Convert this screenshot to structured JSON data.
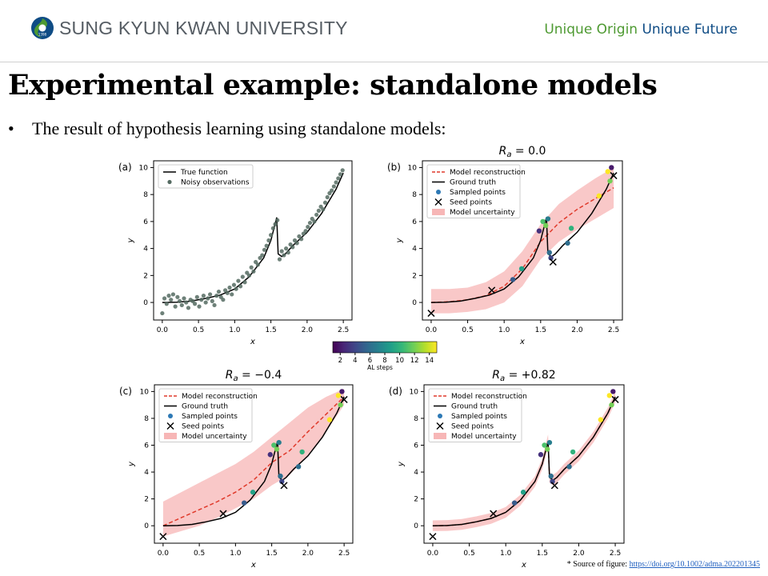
{
  "header": {
    "logo_text": "SUNG KYUN KWAN UNIVERSITY",
    "logo_year": "1398",
    "slogan_part1": "Unique Origin",
    "slogan_part2": "Unique Future",
    "colors": {
      "logo_green": "#4e9a32",
      "logo_blue": "#0f4c85",
      "slogan_green": "#4e9a32",
      "slogan_blue": "#0f4c85"
    }
  },
  "slide": {
    "title": "Experimental example: standalone models",
    "bullet": "The result of hypothesis learning using standalone models:",
    "bullet_glyph": "•"
  },
  "source": {
    "label": "* Source of figure:",
    "link": "https://doi.org/10.1002/adma.202201345"
  },
  "colorbar": {
    "label": "AL steps",
    "ticks": [
      2,
      4,
      6,
      8,
      10,
      12,
      14
    ],
    "range": [
      1,
      15
    ],
    "colormap": "viridis"
  },
  "chart_data": [
    {
      "panel": "(a)",
      "type": "scatter",
      "title": "",
      "xlabel": "x",
      "ylabel": "y",
      "xlim": [
        -0.12,
        2.62
      ],
      "ylim": [
        -1.3,
        10.5
      ],
      "xticks": [
        0.0,
        0.5,
        1.0,
        1.5,
        2.0,
        2.5
      ],
      "yticks": [
        0,
        2,
        4,
        6,
        8,
        10
      ],
      "legend": [
        "True function",
        "Noisy observations"
      ],
      "legend_position": "top-left",
      "series": [
        {
          "name": "True function",
          "kind": "line",
          "color": "#000000",
          "x": [
            0.0,
            0.2,
            0.4,
            0.6,
            0.8,
            1.0,
            1.2,
            1.4,
            1.5,
            1.58,
            1.6,
            1.65,
            1.7,
            1.8,
            2.0,
            2.2,
            2.4,
            2.5
          ],
          "y": [
            0.0,
            0.02,
            0.1,
            0.3,
            0.55,
            1.0,
            1.9,
            3.3,
            4.6,
            6.3,
            3.6,
            3.4,
            3.6,
            4.2,
            5.2,
            6.6,
            8.4,
            9.6
          ]
        },
        {
          "name": "Noisy observations",
          "kind": "points",
          "color": "#556b62",
          "x": [
            0.0,
            0.03,
            0.06,
            0.09,
            0.12,
            0.15,
            0.18,
            0.21,
            0.24,
            0.27,
            0.3,
            0.33,
            0.36,
            0.39,
            0.42,
            0.45,
            0.48,
            0.51,
            0.54,
            0.57,
            0.6,
            0.63,
            0.66,
            0.69,
            0.72,
            0.75,
            0.78,
            0.81,
            0.84,
            0.87,
            0.9,
            0.93,
            0.96,
            0.99,
            1.02,
            1.05,
            1.08,
            1.11,
            1.14,
            1.17,
            1.2,
            1.23,
            1.26,
            1.29,
            1.32,
            1.35,
            1.38,
            1.41,
            1.44,
            1.47,
            1.5,
            1.53,
            1.56,
            1.59,
            1.62,
            1.65,
            1.68,
            1.71,
            1.74,
            1.77,
            1.8,
            1.83,
            1.86,
            1.89,
            1.92,
            1.95,
            1.98,
            2.01,
            2.04,
            2.07,
            2.1,
            2.13,
            2.16,
            2.19,
            2.22,
            2.25,
            2.28,
            2.31,
            2.34,
            2.37,
            2.4,
            2.43,
            2.46,
            2.49
          ],
          "y": [
            -0.8,
            0.3,
            -0.1,
            0.5,
            0.2,
            0.6,
            -0.3,
            0.4,
            0.1,
            -0.2,
            0.3,
            0.0,
            -0.4,
            0.2,
            0.1,
            -0.1,
            0.4,
            -0.3,
            0.2,
            0.5,
            0.0,
            0.3,
            0.6,
            0.1,
            -0.2,
            0.5,
            0.8,
            0.4,
            0.2,
            0.9,
            0.7,
            1.1,
            0.6,
            1.3,
            1.0,
            1.6,
            1.2,
            1.9,
            1.5,
            2.2,
            2.0,
            2.6,
            2.3,
            3.0,
            2.8,
            3.3,
            3.5,
            3.9,
            4.2,
            4.6,
            5.0,
            5.5,
            5.8,
            6.1,
            3.2,
            3.8,
            3.5,
            4.0,
            3.7,
            4.3,
            4.1,
            4.6,
            4.4,
            4.9,
            4.7,
            5.1,
            5.3,
            5.6,
            5.9,
            6.2,
            6.0,
            6.5,
            6.8,
            7.1,
            6.9,
            7.4,
            7.8,
            8.1,
            8.3,
            8.6,
            8.9,
            9.2,
            9.5,
            9.8
          ]
        }
      ]
    },
    {
      "panel": "(b)",
      "type": "line",
      "title": "R_a = 0.0",
      "xlabel": "x",
      "ylabel": "y",
      "xlim": [
        -0.12,
        2.62
      ],
      "ylim": [
        -1.3,
        10.5
      ],
      "xticks": [
        0.0,
        0.5,
        1.0,
        1.5,
        2.0,
        2.5
      ],
      "yticks": [
        0,
        2,
        4,
        6,
        8,
        10
      ],
      "legend": [
        "Model reconstruction",
        "Ground truth",
        "Sampled points",
        "Seed points",
        "Model uncertainty"
      ],
      "legend_position": "top-left",
      "band": {
        "x": [
          0.0,
          0.25,
          0.5,
          0.75,
          1.0,
          1.25,
          1.5,
          1.75,
          2.0,
          2.25,
          2.5
        ],
        "lower": [
          -0.8,
          -0.8,
          -0.7,
          -0.5,
          0.0,
          1.2,
          3.2,
          4.5,
          5.4,
          6.2,
          7.0
        ],
        "upper": [
          1.0,
          1.0,
          1.1,
          1.5,
          2.3,
          3.8,
          5.8,
          7.3,
          8.3,
          9.2,
          10.0
        ]
      },
      "series": [
        {
          "name": "Model reconstruction",
          "kind": "dashed",
          "color": "#e03a2b",
          "x": [
            0.0,
            0.25,
            0.5,
            0.75,
            1.0,
            1.25,
            1.5,
            1.75,
            2.0,
            2.25,
            2.5
          ],
          "y": [
            0.0,
            0.05,
            0.2,
            0.5,
            1.2,
            2.5,
            4.5,
            5.9,
            6.9,
            7.7,
            8.5
          ]
        },
        {
          "name": "Ground truth",
          "kind": "line",
          "color": "#000000",
          "x": [
            0.0,
            0.2,
            0.4,
            0.6,
            0.8,
            1.0,
            1.2,
            1.4,
            1.5,
            1.58,
            1.6,
            1.65,
            1.7,
            1.8,
            2.0,
            2.2,
            2.4,
            2.5
          ],
          "y": [
            0.0,
            0.02,
            0.1,
            0.3,
            0.55,
            1.0,
            1.9,
            3.3,
            4.6,
            6.3,
            3.6,
            3.4,
            3.6,
            4.2,
            5.2,
            6.6,
            8.4,
            9.6
          ]
        }
      ],
      "sampled_points": [
        {
          "x": 1.12,
          "y": 1.7,
          "step": 5
        },
        {
          "x": 1.24,
          "y": 2.5,
          "step": 9
        },
        {
          "x": 1.48,
          "y": 5.3,
          "step": 3
        },
        {
          "x": 1.53,
          "y": 6.0,
          "step": 11
        },
        {
          "x": 1.57,
          "y": 5.7,
          "step": 12
        },
        {
          "x": 1.6,
          "y": 6.2,
          "step": 7
        },
        {
          "x": 1.62,
          "y": 3.7,
          "step": 6
        },
        {
          "x": 1.64,
          "y": 3.3,
          "step": 4
        },
        {
          "x": 1.87,
          "y": 4.4,
          "step": 6
        },
        {
          "x": 1.92,
          "y": 5.5,
          "step": 10
        },
        {
          "x": 2.3,
          "y": 7.9,
          "step": 15
        },
        {
          "x": 2.42,
          "y": 9.7,
          "step": 15
        },
        {
          "x": 2.45,
          "y": 9.0,
          "step": 12
        },
        {
          "x": 2.47,
          "y": 10.0,
          "step": 2
        }
      ],
      "seed_points": [
        {
          "x": 0.0,
          "y": -0.8
        },
        {
          "x": 0.83,
          "y": 0.9
        },
        {
          "x": 1.67,
          "y": 3.0
        },
        {
          "x": 2.5,
          "y": 9.4
        }
      ]
    },
    {
      "panel": "(c)",
      "type": "line",
      "title": "R_a = −0.4",
      "xlabel": "x",
      "ylabel": "y",
      "xlim": [
        -0.12,
        2.62
      ],
      "ylim": [
        -1.3,
        10.5
      ],
      "xticks": [
        0.0,
        0.5,
        1.0,
        1.5,
        2.0,
        2.5
      ],
      "yticks": [
        0,
        2,
        4,
        6,
        8,
        10
      ],
      "legend": [
        "Model reconstruction",
        "Ground truth",
        "Sampled points",
        "Seed points",
        "Model uncertainty"
      ],
      "legend_position": "top-left",
      "band": {
        "x": [
          0.0,
          0.25,
          0.5,
          0.75,
          1.0,
          1.25,
          1.5,
          1.75,
          2.0,
          2.25,
          2.5
        ],
        "lower": [
          -0.8,
          -0.4,
          0.0,
          0.6,
          1.3,
          2.0,
          3.0,
          3.8,
          5.2,
          7.0,
          9.0
        ],
        "upper": [
          1.8,
          2.5,
          3.2,
          3.9,
          4.6,
          5.5,
          6.6,
          7.7,
          8.8,
          9.6,
          10.2
        ]
      },
      "series": [
        {
          "name": "Model reconstruction",
          "kind": "dashed",
          "color": "#e03a2b",
          "x": [
            0.0,
            0.25,
            0.5,
            0.75,
            1.0,
            1.25,
            1.5,
            1.75,
            2.0,
            2.25,
            2.5
          ],
          "y": [
            0.0,
            0.6,
            1.2,
            1.8,
            2.5,
            3.4,
            4.7,
            5.6,
            7.0,
            8.3,
            9.6
          ]
        },
        {
          "name": "Ground truth",
          "kind": "line",
          "color": "#000000",
          "x": [
            0.0,
            0.2,
            0.4,
            0.6,
            0.8,
            1.0,
            1.2,
            1.4,
            1.5,
            1.58,
            1.6,
            1.65,
            1.7,
            1.8,
            2.0,
            2.2,
            2.4,
            2.5
          ],
          "y": [
            0.0,
            0.02,
            0.1,
            0.3,
            0.55,
            1.0,
            1.9,
            3.3,
            4.6,
            6.3,
            3.6,
            3.4,
            3.6,
            4.2,
            5.2,
            6.6,
            8.4,
            9.6
          ]
        }
      ],
      "sampled_points": [
        {
          "x": 1.12,
          "y": 1.7,
          "step": 5
        },
        {
          "x": 1.24,
          "y": 2.5,
          "step": 9
        },
        {
          "x": 1.48,
          "y": 5.3,
          "step": 3
        },
        {
          "x": 1.53,
          "y": 6.0,
          "step": 11
        },
        {
          "x": 1.57,
          "y": 5.7,
          "step": 12
        },
        {
          "x": 1.6,
          "y": 6.2,
          "step": 7
        },
        {
          "x": 1.62,
          "y": 3.7,
          "step": 6
        },
        {
          "x": 1.64,
          "y": 3.3,
          "step": 4
        },
        {
          "x": 1.87,
          "y": 4.4,
          "step": 6
        },
        {
          "x": 1.92,
          "y": 5.5,
          "step": 10
        },
        {
          "x": 2.3,
          "y": 7.9,
          "step": 15
        },
        {
          "x": 2.42,
          "y": 9.7,
          "step": 15
        },
        {
          "x": 2.45,
          "y": 9.0,
          "step": 12
        },
        {
          "x": 2.47,
          "y": 10.0,
          "step": 2
        }
      ],
      "seed_points": [
        {
          "x": 0.0,
          "y": -0.8
        },
        {
          "x": 0.83,
          "y": 0.9
        },
        {
          "x": 1.67,
          "y": 3.0
        },
        {
          "x": 2.5,
          "y": 9.4
        }
      ]
    },
    {
      "panel": "(d)",
      "type": "line",
      "title": "R_a = +0.82",
      "xlabel": "x",
      "ylabel": "y",
      "xlim": [
        -0.12,
        2.62
      ],
      "ylim": [
        -1.3,
        10.5
      ],
      "xticks": [
        0.0,
        0.5,
        1.0,
        1.5,
        2.0,
        2.5
      ],
      "yticks": [
        0,
        2,
        4,
        6,
        8,
        10
      ],
      "legend": [
        "Model reconstruction",
        "Ground truth",
        "Sampled points",
        "Seed points",
        "Model uncertainty"
      ],
      "legend_position": "top-left",
      "band": {
        "x": [
          0.0,
          0.2,
          0.4,
          0.6,
          0.8,
          1.0,
          1.2,
          1.4,
          1.5,
          1.58,
          1.6,
          1.65,
          1.7,
          1.8,
          2.0,
          2.2,
          2.4,
          2.5
        ],
        "lower": [
          -0.4,
          -0.38,
          -0.3,
          -0.1,
          0.15,
          0.6,
          1.5,
          2.9,
          4.2,
          5.8,
          3.2,
          3.0,
          3.2,
          3.8,
          4.8,
          6.2,
          8.0,
          9.2
        ],
        "upper": [
          0.4,
          0.42,
          0.5,
          0.7,
          0.95,
          1.4,
          2.3,
          3.7,
          5.0,
          6.8,
          4.0,
          3.8,
          4.0,
          4.6,
          5.6,
          7.0,
          8.8,
          10.0
        ]
      },
      "series": [
        {
          "name": "Model reconstruction",
          "kind": "dashed",
          "color": "#e03a2b",
          "x": [
            0.0,
            0.2,
            0.4,
            0.6,
            0.8,
            1.0,
            1.2,
            1.4,
            1.5,
            1.58,
            1.6,
            1.65,
            1.7,
            1.8,
            2.0,
            2.2,
            2.4,
            2.5
          ],
          "y": [
            0.0,
            0.02,
            0.1,
            0.3,
            0.55,
            1.0,
            1.9,
            3.3,
            4.6,
            6.3,
            3.6,
            3.4,
            3.6,
            4.2,
            5.2,
            6.6,
            8.4,
            9.6
          ]
        },
        {
          "name": "Ground truth",
          "kind": "line",
          "color": "#000000",
          "x": [
            0.0,
            0.2,
            0.4,
            0.6,
            0.8,
            1.0,
            1.2,
            1.4,
            1.5,
            1.58,
            1.6,
            1.65,
            1.7,
            1.8,
            2.0,
            2.2,
            2.4,
            2.5
          ],
          "y": [
            0.0,
            0.02,
            0.1,
            0.3,
            0.55,
            1.0,
            1.9,
            3.3,
            4.6,
            6.3,
            3.6,
            3.4,
            3.6,
            4.2,
            5.2,
            6.6,
            8.4,
            9.6
          ]
        }
      ],
      "sampled_points": [
        {
          "x": 1.12,
          "y": 1.7,
          "step": 5
        },
        {
          "x": 1.24,
          "y": 2.5,
          "step": 9
        },
        {
          "x": 1.48,
          "y": 5.3,
          "step": 3
        },
        {
          "x": 1.53,
          "y": 6.0,
          "step": 11
        },
        {
          "x": 1.57,
          "y": 5.7,
          "step": 12
        },
        {
          "x": 1.6,
          "y": 6.2,
          "step": 7
        },
        {
          "x": 1.62,
          "y": 3.7,
          "step": 6
        },
        {
          "x": 1.64,
          "y": 3.3,
          "step": 4
        },
        {
          "x": 1.87,
          "y": 4.4,
          "step": 6
        },
        {
          "x": 1.92,
          "y": 5.5,
          "step": 10
        },
        {
          "x": 2.3,
          "y": 7.9,
          "step": 15
        },
        {
          "x": 2.42,
          "y": 9.7,
          "step": 15
        },
        {
          "x": 2.45,
          "y": 9.0,
          "step": 12
        },
        {
          "x": 2.47,
          "y": 10.0,
          "step": 2
        }
      ],
      "seed_points": [
        {
          "x": 0.0,
          "y": -0.8
        },
        {
          "x": 0.83,
          "y": 0.9
        },
        {
          "x": 1.67,
          "y": 3.0
        },
        {
          "x": 2.5,
          "y": 9.4
        }
      ]
    }
  ]
}
